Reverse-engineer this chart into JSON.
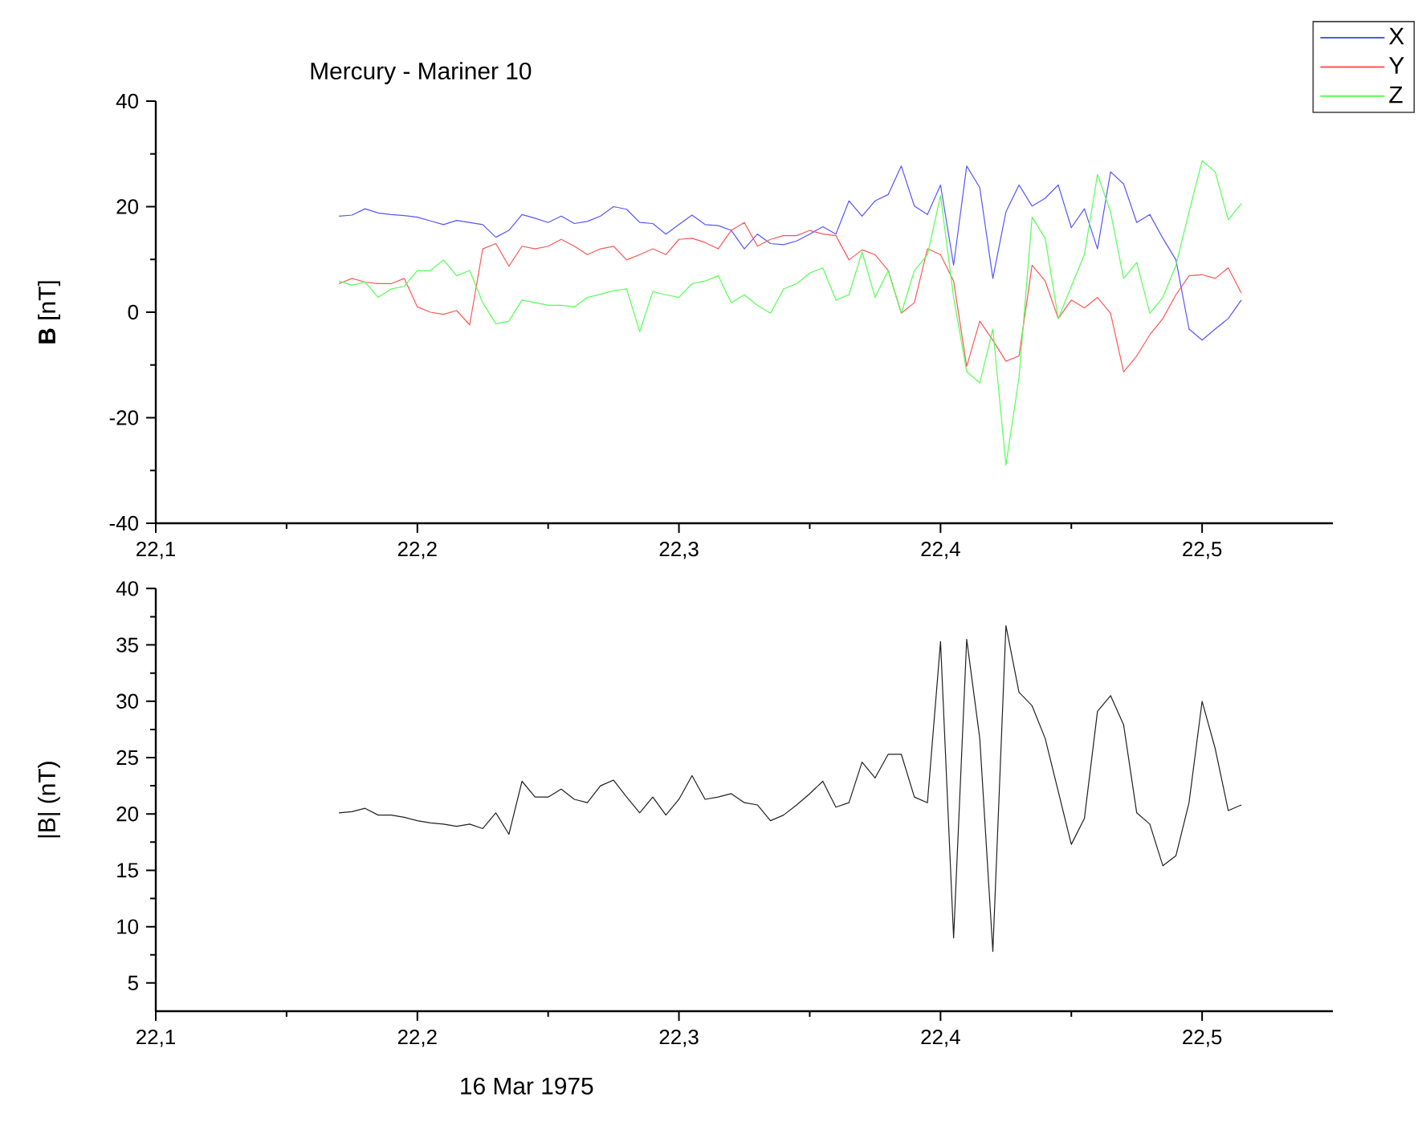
{
  "chart_data": [
    {
      "type": "line",
      "title": "Mercury - Mariner 10",
      "ylabel": "**B** [nT]",
      "x": [
        22.17,
        22.175,
        22.18,
        22.185,
        22.19,
        22.195,
        22.2,
        22.205,
        22.21,
        22.215,
        22.22,
        22.225,
        22.23,
        22.235,
        22.24,
        22.245,
        22.25,
        22.255,
        22.26,
        22.265,
        22.27,
        22.275,
        22.28,
        22.285,
        22.29,
        22.295,
        22.3,
        22.305,
        22.31,
        22.315,
        22.32,
        22.325,
        22.33,
        22.335,
        22.34,
        22.345,
        22.35,
        22.355,
        22.36,
        22.365,
        22.37,
        22.375,
        22.38,
        22.385,
        22.39,
        22.395,
        22.4,
        22.405,
        22.41,
        22.415,
        22.42,
        22.425,
        22.43,
        22.435,
        22.44,
        22.445,
        22.45,
        22.455,
        22.46,
        22.465,
        22.47,
        22.475,
        22.48,
        22.485,
        22.49,
        22.495,
        22.5,
        22.505,
        22.51,
        22.515
      ],
      "xlim": [
        22.1,
        22.55
      ],
      "xticks": [
        {
          "value": 22.1,
          "label": "22,1"
        },
        {
          "value": 22.2,
          "label": "22,2"
        },
        {
          "value": 22.3,
          "label": "22,3"
        },
        {
          "value": 22.4,
          "label": "22,4"
        },
        {
          "value": 22.5,
          "label": "22,5"
        }
      ],
      "ylim": [
        -40,
        40
      ],
      "yticks": [
        -40,
        -20,
        0,
        20,
        40
      ],
      "legend": "top right",
      "series": [
        {
          "name": "X",
          "color": "#5555ff",
          "values": [
            18.2,
            18.4,
            19.6,
            18.8,
            18.5,
            18.3,
            18.0,
            17.3,
            16.6,
            17.4,
            17.0,
            16.6,
            14.2,
            15.5,
            18.5,
            17.8,
            17.0,
            18.2,
            16.8,
            17.2,
            18.2,
            20.0,
            19.5,
            17.0,
            16.8,
            14.8,
            16.6,
            18.4,
            16.6,
            16.4,
            15.5,
            12.0,
            14.8,
            13.0,
            12.8,
            13.5,
            14.8,
            16.2,
            14.8,
            21.1,
            18.2,
            21.1,
            22.3,
            27.7,
            20.1,
            18.5,
            24.1,
            8.9,
            27.7,
            23.6,
            6.4,
            19.0,
            24.1,
            20.1,
            21.6,
            24.1,
            16.0,
            19.6,
            12.0,
            26.6,
            24.3,
            17.0,
            18.5,
            14.0,
            9.9,
            -3.2,
            -5.3,
            -3.2,
            -1.2,
            2.3
          ]
        },
        {
          "name": "Y",
          "color": "#ff5555",
          "values": [
            5.4,
            6.4,
            5.7,
            5.4,
            5.4,
            6.4,
            1.0,
            0,
            -0.4,
            0.3,
            -2.4,
            12.0,
            13.0,
            8.7,
            12.5,
            12.0,
            12.5,
            13.8,
            12.5,
            10.9,
            12.0,
            12.5,
            9.9,
            10.9,
            12.0,
            10.9,
            13.8,
            14.0,
            13.2,
            12.0,
            15.5,
            17.0,
            12.5,
            13.8,
            14.5,
            14.5,
            15.5,
            14.8,
            14.5,
            9.9,
            11.8,
            10.9,
            7.9,
            -0.2,
            1.8,
            12.0,
            10.9,
            5.9,
            -10.3,
            -1.7,
            -5.3,
            -9.3,
            -8.3,
            8.9,
            5.9,
            -1.2,
            2.3,
            0.8,
            2.8,
            -0.2,
            -11.3,
            -8.3,
            -4.3,
            -1.2,
            3.3,
            6.9,
            7.1,
            6.4,
            8.4,
            3.6
          ]
        },
        {
          "name": "Z",
          "color": "#55ff55",
          "values": [
            5.9,
            5.1,
            5.7,
            2.8,
            4.4,
            4.9,
            7.9,
            7.9,
            9.9,
            6.9,
            7.9,
            1.8,
            -2.2,
            -1.7,
            2.3,
            1.8,
            1.3,
            1.3,
            1.0,
            2.8,
            3.4,
            4.1,
            4.4,
            -3.7,
            3.9,
            3.3,
            2.8,
            5.4,
            5.9,
            6.9,
            1.8,
            3.3,
            1.3,
            -0.2,
            4.4,
            5.4,
            7.4,
            8.4,
            2.3,
            3.3,
            11.4,
            2.8,
            7.9,
            -0.2,
            7.9,
            10.9,
            22.1,
            2.8,
            -11.3,
            -13.4,
            -3.2,
            -29,
            -12.4,
            18.0,
            14.0,
            -1.2,
            4.9,
            10.9,
            26.1,
            19.0,
            6.4,
            9.4,
            -0.2,
            2.8,
            8.9,
            19.0,
            28.7,
            26.6,
            17.5,
            20.6
          ]
        }
      ]
    },
    {
      "type": "line",
      "ylabel": "|B| (nT)",
      "xlabel": "16 Mar 1975",
      "x": [
        22.17,
        22.175,
        22.18,
        22.185,
        22.19,
        22.195,
        22.2,
        22.205,
        22.21,
        22.215,
        22.22,
        22.225,
        22.23,
        22.235,
        22.24,
        22.245,
        22.25,
        22.255,
        22.26,
        22.265,
        22.27,
        22.275,
        22.28,
        22.285,
        22.29,
        22.295,
        22.3,
        22.305,
        22.31,
        22.315,
        22.32,
        22.325,
        22.33,
        22.335,
        22.34,
        22.345,
        22.35,
        22.355,
        22.36,
        22.365,
        22.37,
        22.375,
        22.38,
        22.385,
        22.39,
        22.395,
        22.4,
        22.405,
        22.41,
        22.415,
        22.42,
        22.425,
        22.43,
        22.435,
        22.44,
        22.445,
        22.45,
        22.455,
        22.46,
        22.465,
        22.47,
        22.475,
        22.48,
        22.485,
        22.49,
        22.495,
        22.5,
        22.505,
        22.51,
        22.515
      ],
      "xlim": [
        22.1,
        22.55
      ],
      "xticks": [
        {
          "value": 22.1,
          "label": "22,1"
        },
        {
          "value": 22.2,
          "label": "22,2"
        },
        {
          "value": 22.3,
          "label": "22,3"
        },
        {
          "value": 22.4,
          "label": "22,4"
        },
        {
          "value": 22.5,
          "label": "22,5"
        }
      ],
      "ylim": [
        2.5,
        40
      ],
      "yticks": [
        5,
        10,
        15,
        20,
        25,
        30,
        35,
        40
      ],
      "series": [
        {
          "color": "#202020",
          "values": [
            20.1,
            20.2,
            20.5,
            19.9,
            19.9,
            19.7,
            19.4,
            19.2,
            19.1,
            18.9,
            19.1,
            18.7,
            20.1,
            18.2,
            22.9,
            21.5,
            21.5,
            22.2,
            21.3,
            21.0,
            22.5,
            23.0,
            21.5,
            20.1,
            21.5,
            19.9,
            21.3,
            23.4,
            21.3,
            21.5,
            21.8,
            21.0,
            20.8,
            19.4,
            19.9,
            20.8,
            21.8,
            22.9,
            20.6,
            21.0,
            24.6,
            23.2,
            25.3,
            25.3,
            21.5,
            21.0,
            35.3,
            9.0,
            35.5,
            26.7,
            7.8,
            36.7,
            30.8,
            29.6,
            26.7,
            22.0,
            17.3,
            19.6,
            29.1,
            30.5,
            27.9,
            20.1,
            19.1,
            15.4,
            16.3,
            21.0,
            30.0,
            25.8,
            20.3,
            20.8
          ]
        }
      ]
    }
  ]
}
